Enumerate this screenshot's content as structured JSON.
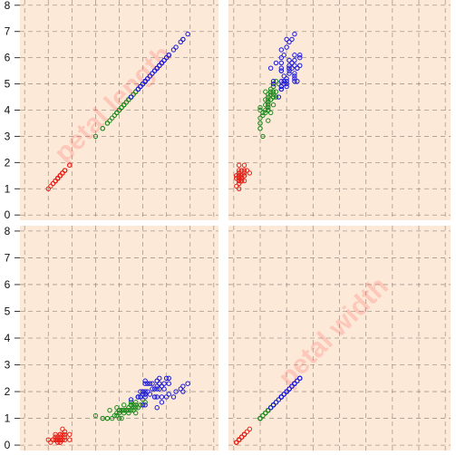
{
  "chart_data": {
    "type": "scatter",
    "variables": [
      "petal length",
      "petal width"
    ],
    "diagonal_labels": [
      "petal length",
      "petal width"
    ],
    "axis_ticks": [
      0,
      1,
      2,
      3,
      4,
      5,
      6,
      7,
      8
    ],
    "axis_range": [
      -0.2,
      8.2
    ],
    "grid": true,
    "species_colors": [
      "#e8231a",
      "#1d8a1d",
      "#1a1adb"
    ],
    "species_data": [
      {
        "color": "#e8231a",
        "petal_length": [
          1.4,
          1.4,
          1.3,
          1.5,
          1.4,
          1.7,
          1.4,
          1.5,
          1.4,
          1.5,
          1.5,
          1.6,
          1.4,
          1.1,
          1.2,
          1.5,
          1.3,
          1.4,
          1.7,
          1.5,
          1.7,
          1.5,
          1.0,
          1.7,
          1.9,
          1.6,
          1.6,
          1.5,
          1.4,
          1.6,
          1.6,
          1.5,
          1.5,
          1.4,
          1.5,
          1.2,
          1.3,
          1.4,
          1.3,
          1.5,
          1.3,
          1.3,
          1.3,
          1.6,
          1.9,
          1.4,
          1.6,
          1.4,
          1.5,
          1.4
        ],
        "petal_width": [
          0.2,
          0.2,
          0.2,
          0.2,
          0.2,
          0.4,
          0.3,
          0.2,
          0.2,
          0.1,
          0.2,
          0.2,
          0.1,
          0.1,
          0.2,
          0.4,
          0.4,
          0.3,
          0.3,
          0.3,
          0.2,
          0.4,
          0.2,
          0.5,
          0.2,
          0.2,
          0.4,
          0.2,
          0.2,
          0.2,
          0.2,
          0.4,
          0.1,
          0.2,
          0.2,
          0.2,
          0.2,
          0.1,
          0.2,
          0.2,
          0.3,
          0.3,
          0.2,
          0.6,
          0.4,
          0.3,
          0.2,
          0.2,
          0.2,
          0.2
        ]
      },
      {
        "color": "#1d8a1d",
        "petal_length": [
          4.7,
          4.5,
          4.9,
          4.0,
          4.6,
          4.5,
          4.7,
          3.3,
          4.6,
          3.9,
          3.5,
          4.2,
          4.0,
          4.7,
          3.6,
          4.4,
          4.5,
          4.1,
          4.5,
          3.9,
          4.8,
          4.0,
          4.9,
          4.7,
          4.3,
          4.4,
          4.8,
          5.0,
          4.5,
          3.5,
          3.8,
          3.7,
          3.9,
          5.1,
          4.5,
          4.5,
          4.7,
          4.4,
          4.1,
          4.0,
          4.4,
          4.6,
          4.0,
          3.3,
          4.2,
          4.2,
          4.2,
          4.3,
          3.0,
          4.1
        ],
        "petal_width": [
          1.4,
          1.5,
          1.5,
          1.3,
          1.5,
          1.3,
          1.6,
          1.0,
          1.3,
          1.4,
          1.0,
          1.5,
          1.0,
          1.4,
          1.3,
          1.4,
          1.5,
          1.0,
          1.5,
          1.1,
          1.8,
          1.3,
          1.5,
          1.2,
          1.3,
          1.4,
          1.4,
          1.7,
          1.5,
          1.0,
          1.1,
          1.0,
          1.2,
          1.6,
          1.5,
          1.6,
          1.5,
          1.3,
          1.3,
          1.3,
          1.2,
          1.4,
          1.2,
          1.0,
          1.3,
          1.2,
          1.3,
          1.3,
          1.1,
          1.3
        ]
      },
      {
        "color": "#1a1adb",
        "petal_length": [
          6.0,
          5.1,
          5.9,
          5.6,
          5.8,
          6.6,
          4.5,
          6.3,
          5.8,
          6.1,
          5.1,
          5.3,
          5.5,
          5.0,
          5.1,
          5.3,
          5.5,
          6.7,
          6.9,
          5.0,
          5.7,
          4.9,
          6.7,
          4.9,
          5.7,
          6.0,
          4.8,
          4.9,
          5.6,
          5.8,
          6.1,
          6.4,
          5.6,
          5.1,
          5.6,
          6.1,
          5.6,
          5.5,
          4.8,
          5.4,
          5.6,
          5.1,
          5.1,
          5.9,
          5.7,
          5.2,
          5.0,
          5.2,
          5.4,
          5.1
        ],
        "petal_width": [
          2.5,
          1.9,
          2.1,
          1.8,
          2.2,
          2.1,
          1.7,
          1.8,
          1.8,
          2.5,
          2.0,
          1.9,
          2.1,
          2.0,
          2.4,
          2.3,
          1.8,
          2.2,
          2.3,
          1.5,
          2.3,
          2.0,
          2.0,
          1.8,
          2.1,
          1.8,
          1.8,
          1.8,
          2.1,
          1.6,
          1.9,
          2.0,
          2.2,
          1.5,
          1.4,
          2.3,
          2.4,
          1.8,
          1.8,
          2.1,
          2.4,
          2.3,
          1.9,
          2.3,
          2.5,
          2.3,
          1.9,
          2.0,
          2.3,
          1.8
        ]
      }
    ]
  }
}
